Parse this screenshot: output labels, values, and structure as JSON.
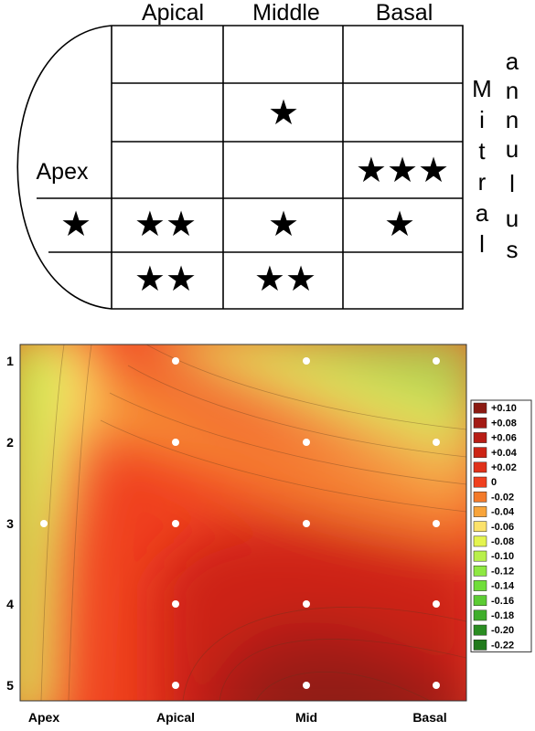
{
  "top_schematic": {
    "column_headers": [
      "Apical",
      "Middle",
      "Basal"
    ],
    "apex_label": "Apex",
    "mitral_label": [
      "M",
      "i",
      "t",
      "r",
      "a",
      "l"
    ],
    "annulus_label": [
      "a",
      "n",
      "n",
      "u",
      "l",
      "u",
      "s"
    ],
    "apex_cell_stars": [
      "",
      "",
      "",
      "★",
      ""
    ],
    "grid_stars": [
      [
        "",
        "",
        ""
      ],
      [
        "",
        "★",
        ""
      ],
      [
        "",
        "",
        "★★★"
      ],
      [
        "★★",
        "★",
        "★"
      ],
      [
        "★★",
        "★★",
        ""
      ]
    ]
  },
  "chart_data": {
    "type": "heatmap",
    "x_tick_labels": [
      "Apex",
      "Apical",
      "Mid",
      "Basal"
    ],
    "y_tick_labels": [
      "1",
      "2",
      "3",
      "4",
      "5"
    ],
    "legend": [
      "+0.10",
      "+0.08",
      "+0.06",
      "+0.04",
      "+0.02",
      "0",
      "-0.02",
      "-0.04",
      "-0.06",
      "-0.08",
      "-0.10",
      "-0.12",
      "-0.14",
      "-0.16",
      "-0.18",
      "-0.20",
      "-0.22"
    ],
    "legend_colors": [
      "#8b1a12",
      "#a31a14",
      "#b81d15",
      "#cd2415",
      "#e0311a",
      "#f0401f",
      "#f37a2a",
      "#f8a43a",
      "#fbe26b",
      "#e4f44e",
      "#b8f04a",
      "#8ee842",
      "#70de3a",
      "#5ccc34",
      "#3fae2b",
      "#2a8d22",
      "#217a1c"
    ],
    "legend_position": "right",
    "sample_points": [
      {
        "x": "Apical",
        "y": "1"
      },
      {
        "x": "Mid",
        "y": "1"
      },
      {
        "x": "Basal",
        "y": "1"
      },
      {
        "x": "Apical",
        "y": "2"
      },
      {
        "x": "Mid",
        "y": "2"
      },
      {
        "x": "Basal",
        "y": "2"
      },
      {
        "x": "Apex",
        "y": "3"
      },
      {
        "x": "Apical",
        "y": "3"
      },
      {
        "x": "Mid",
        "y": "3"
      },
      {
        "x": "Basal",
        "y": "3"
      },
      {
        "x": "Apical",
        "y": "4"
      },
      {
        "x": "Mid",
        "y": "4"
      },
      {
        "x": "Basal",
        "y": "4"
      },
      {
        "x": "Apical",
        "y": "5"
      },
      {
        "x": "Mid",
        "y": "5"
      },
      {
        "x": "Basal",
        "y": "5"
      }
    ],
    "grid": false
  }
}
